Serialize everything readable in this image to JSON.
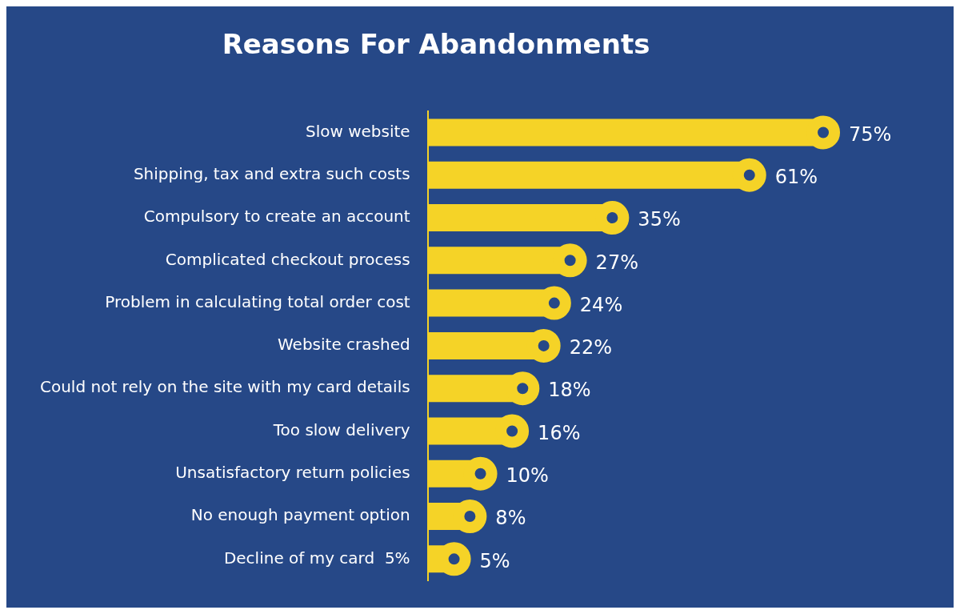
{
  "chart_data": {
    "type": "lollipop",
    "title": "Reasons For Abandonments",
    "orientation": "horizontal",
    "categories": [
      "Slow website",
      "Shipping, tax and extra such costs",
      "Compulsory to create an account",
      "Complicated checkout process",
      "Problem in calculating total order cost",
      "Website crashed",
      "Could not rely on the site with my card details",
      "Too slow delivery",
      "Unsatisfactory return policies",
      "No enough payment option",
      "Decline of my card  5%"
    ],
    "values": [
      75,
      61,
      35,
      27,
      24,
      22,
      18,
      16,
      10,
      8,
      5
    ],
    "value_labels": [
      "75%",
      "61%",
      "35%",
      "27%",
      "24%",
      "22%",
      "18%",
      "16%",
      "10%",
      "8%",
      "5%"
    ],
    "color": "#f5d327",
    "marker": "circle",
    "tick_labels": "y",
    "legend": false
  }
}
